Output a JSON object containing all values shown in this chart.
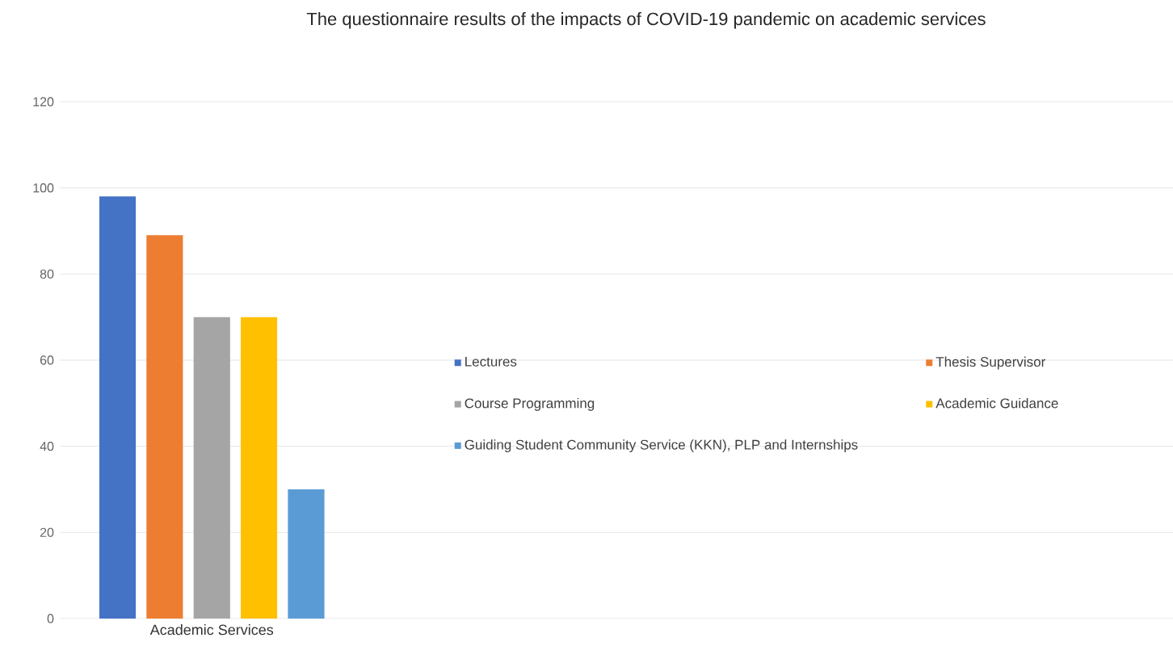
{
  "chart_data": {
    "type": "bar",
    "title": "The questionnaire results of the impacts of COVID-19 pandemic on academic services",
    "categories": [
      "Academic Services"
    ],
    "series": [
      {
        "name": "Lectures",
        "color": "#4472c4",
        "values": [
          98
        ]
      },
      {
        "name": "Thesis Supervisor",
        "color": "#ed7d31",
        "values": [
          89
        ]
      },
      {
        "name": "Course Programming",
        "color": "#a5a5a5",
        "values": [
          70
        ]
      },
      {
        "name": "Academic Guidance",
        "color": "#ffc000",
        "values": [
          70
        ]
      },
      {
        "name": "Guiding Student Community Service (KKN), PLP and Internships",
        "color": "#5b9bd5",
        "values": [
          30
        ]
      }
    ],
    "ylim": [
      0,
      120
    ],
    "yticks": [
      0,
      20,
      40,
      60,
      80,
      100,
      120
    ],
    "grid": "y",
    "legend": "right"
  }
}
